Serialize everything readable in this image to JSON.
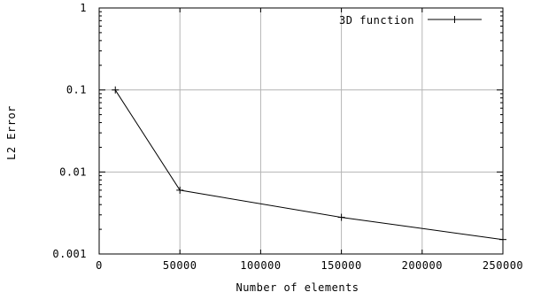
{
  "chart_data": {
    "type": "line",
    "title": "",
    "xlabel": "Number of elements",
    "ylabel": "L2 Error",
    "xscale": "linear",
    "yscale": "log",
    "xlim": [
      0,
      250000
    ],
    "ylim": [
      0.001,
      1
    ],
    "x_ticks": [
      0,
      50000,
      100000,
      150000,
      200000,
      250000
    ],
    "x_tick_labels": [
      "0",
      "50000",
      "100000",
      "150000",
      "200000",
      "250000"
    ],
    "y_ticks": [
      0.001,
      0.01,
      0.1,
      1
    ],
    "y_tick_labels": [
      "0.001",
      "0.01",
      "0.1",
      "1"
    ],
    "grid": true,
    "legend": {
      "position": "top-right"
    },
    "series": [
      {
        "name": "3D function",
        "color": "#000000",
        "marker": "plus",
        "x": [
          10000,
          50000,
          150000,
          250000
        ],
        "y": [
          0.1,
          0.006,
          0.0028,
          0.0015
        ]
      }
    ]
  }
}
